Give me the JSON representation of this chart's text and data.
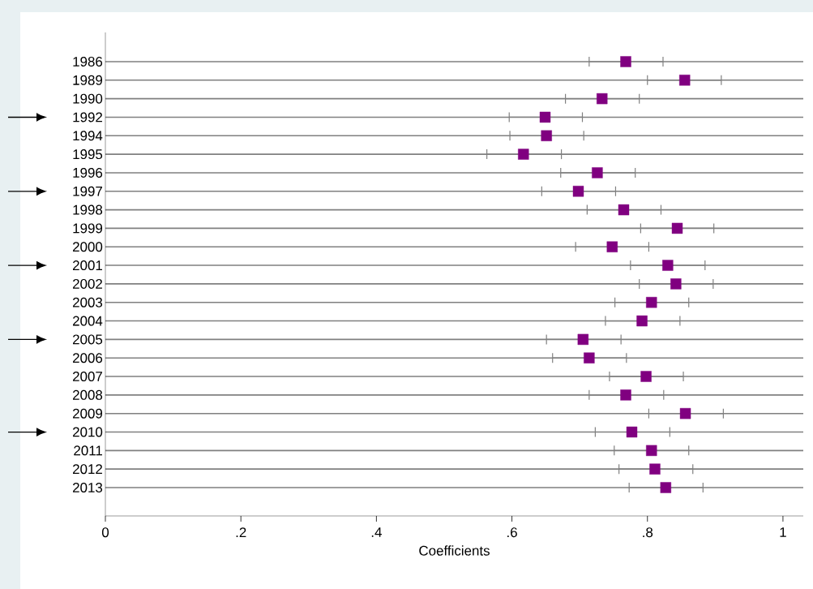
{
  "chart_data": {
    "type": "scatter",
    "orientation": "horizontal",
    "xlabel": "Coefficients",
    "categories": [
      "1986",
      "1989",
      "1990",
      "1992",
      "1994",
      "1995",
      "1996",
      "1997",
      "1998",
      "1999",
      "2000",
      "2001",
      "2002",
      "2003",
      "2004",
      "2005",
      "2006",
      "2007",
      "2008",
      "2009",
      "2010",
      "2011",
      "2012",
      "2013"
    ],
    "values": [
      0.768,
      0.855,
      0.733,
      0.649,
      0.651,
      0.617,
      0.726,
      0.698,
      0.765,
      0.844,
      0.748,
      0.83,
      0.842,
      0.806,
      0.792,
      0.705,
      0.714,
      0.798,
      0.768,
      0.856,
      0.777,
      0.806,
      0.811,
      0.827
    ],
    "errors": [
      [
        0.714,
        0.823
      ],
      [
        0.8,
        0.909
      ],
      [
        0.679,
        0.788
      ],
      [
        0.596,
        0.704
      ],
      [
        0.597,
        0.706
      ],
      [
        0.563,
        0.673
      ],
      [
        0.672,
        0.782
      ],
      [
        0.644,
        0.753
      ],
      [
        0.711,
        0.82
      ],
      [
        0.79,
        0.898
      ],
      [
        0.694,
        0.802
      ],
      [
        0.775,
        0.885
      ],
      [
        0.788,
        0.897
      ],
      [
        0.752,
        0.861
      ],
      [
        0.738,
        0.848
      ],
      [
        0.651,
        0.761
      ],
      [
        0.66,
        0.769
      ],
      [
        0.744,
        0.853
      ],
      [
        0.714,
        0.824
      ],
      [
        0.802,
        0.912
      ],
      [
        0.723,
        0.833
      ],
      [
        0.751,
        0.861
      ],
      [
        0.758,
        0.867
      ],
      [
        0.773,
        0.882
      ]
    ],
    "color": "#800080",
    "marker": "square",
    "grid": "y",
    "xlim": [
      0,
      1.03
    ],
    "xticks": [
      0,
      {
        "value": 0.2,
        "label": ".2"
      },
      {
        "value": 0.4,
        "label": ".4"
      },
      {
        "value": 0.6,
        "label": ".6"
      },
      {
        "value": 0.8,
        "label": ".8"
      },
      1
    ]
  }
}
